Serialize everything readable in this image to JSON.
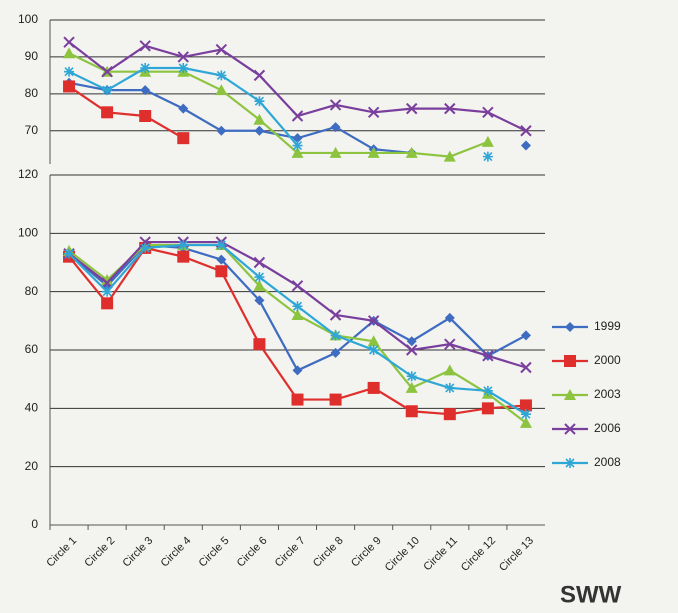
{
  "chart_data": [
    {
      "type": "line",
      "ylim": [
        61,
        100
      ],
      "yticks": [
        70,
        80,
        90,
        100
      ],
      "grid": true,
      "series": [
        {
          "color": "#3d6cc0",
          "marker": "diamond",
          "values": [
            83,
            81,
            81,
            76,
            70,
            70,
            68,
            71,
            65,
            64,
            null,
            null,
            66
          ]
        },
        {
          "color": "#df2f2c",
          "marker": "square",
          "values": [
            82,
            75,
            74,
            68,
            null,
            null,
            null,
            null,
            null,
            null,
            null,
            null,
            null
          ]
        },
        {
          "color": "#8dc43f",
          "marker": "triangle",
          "values": [
            91,
            86,
            86,
            86,
            81,
            73,
            64,
            64,
            64,
            64,
            63,
            67,
            null
          ]
        },
        {
          "color": "#7a3f9d",
          "marker": "x",
          "values": [
            94,
            86,
            93,
            90,
            92,
            85,
            74,
            77,
            75,
            76,
            76,
            75,
            70
          ]
        },
        {
          "color": "#2ea7d6",
          "marker": "star",
          "values": [
            86,
            81,
            87,
            87,
            85,
            78,
            66,
            null,
            null,
            null,
            null,
            63,
            null
          ]
        }
      ]
    },
    {
      "type": "line",
      "categories": [
        "Circle 1",
        "Circle 2",
        "Circle 3",
        "Circle 4",
        "Circle 5",
        "Circle 6",
        "Circle 7",
        "Circle 8",
        "Circle 9",
        "Circle 10",
        "Circle 11",
        "Circle 12",
        "Circle 13"
      ],
      "ylim": [
        0,
        120
      ],
      "yticks": [
        0,
        20,
        40,
        60,
        80,
        100,
        120
      ],
      "grid": true,
      "legend": "right",
      "annotation": "SWW",
      "series": [
        {
          "name": "1999",
          "color": "#3d6cc0",
          "marker": "diamond",
          "values": [
            93,
            82,
            96,
            95,
            91,
            77,
            53,
            59,
            70,
            63,
            71,
            58,
            65
          ]
        },
        {
          "name": "2000",
          "color": "#df2f2c",
          "marker": "square",
          "values": [
            92,
            76,
            95,
            92,
            87,
            62,
            43,
            43,
            47,
            39,
            38,
            40,
            41
          ]
        },
        {
          "name": "2003",
          "color": "#8dc43f",
          "marker": "triangle",
          "values": [
            94,
            84,
            96,
            96,
            96,
            82,
            72,
            65,
            63,
            47,
            53,
            45,
            35
          ]
        },
        {
          "name": "2006",
          "color": "#7a3f9d",
          "marker": "x",
          "values": [
            93,
            83,
            97,
            97,
            97,
            90,
            82,
            72,
            70,
            60,
            62,
            58,
            54
          ]
        },
        {
          "name": "2008",
          "color": "#2ea7d6",
          "marker": "star",
          "values": [
            93,
            80,
            95,
            96,
            96,
            85,
            75,
            65,
            60,
            51,
            47,
            46,
            38
          ]
        }
      ]
    }
  ]
}
